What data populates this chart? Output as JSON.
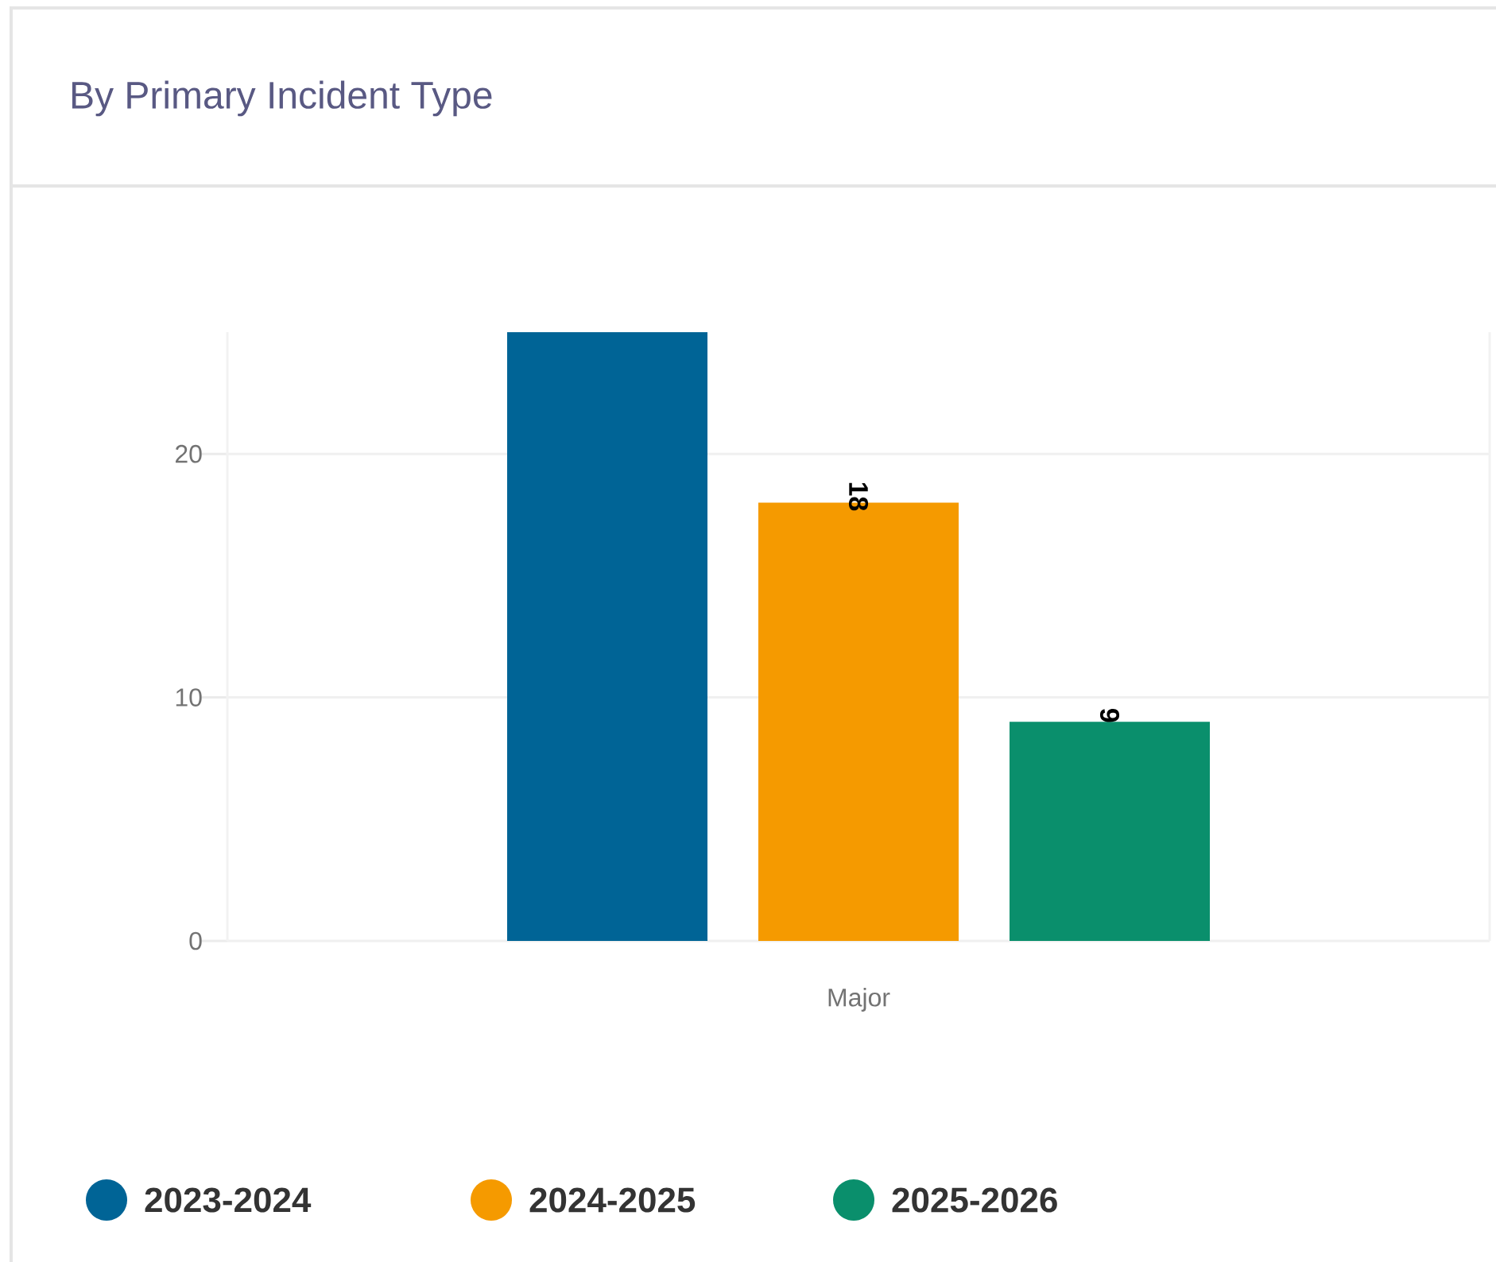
{
  "chart_data": {
    "type": "bar",
    "title": "By Primary Incident Type",
    "categories": [
      "Major"
    ],
    "series": [
      {
        "name": "2023-2024",
        "color": "#006496",
        "values": [
          25
        ]
      },
      {
        "name": "2024-2025",
        "color": "#f59a00",
        "values": [
          18
        ],
        "value_labels": [
          "18"
        ]
      },
      {
        "name": "2025-2026",
        "color": "#0a8f6c",
        "values": [
          9
        ],
        "value_labels": [
          "9"
        ]
      }
    ],
    "ylim": [
      0,
      25
    ],
    "yticks": [
      0,
      10,
      20
    ],
    "grid": "y",
    "legend": "bottom left",
    "marker": "circle"
  }
}
